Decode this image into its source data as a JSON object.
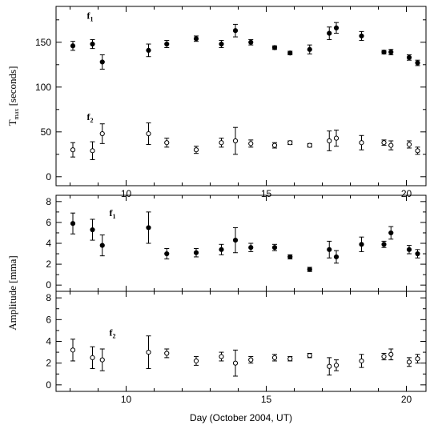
{
  "chart_data": [
    {
      "type": "scatter",
      "ylabel_main": "T",
      "ylabel_sub": "max",
      "ylabel_rest": "[seconds]",
      "xlim": [
        7.5,
        20.7
      ],
      "ylim": [
        -10,
        190
      ],
      "yticks": [
        0,
        50,
        100,
        150
      ],
      "xticks": [
        10,
        15,
        20
      ],
      "annotations": [
        {
          "main": "f",
          "sub": "1",
          "x": 8.6,
          "y": 176
        },
        {
          "main": "f",
          "sub": "2",
          "x": 8.6,
          "y": 63
        }
      ],
      "series": [
        {
          "marker": "filled",
          "points": [
            {
              "x": 8.1,
              "y": 146,
              "err": 5
            },
            {
              "x": 8.8,
              "y": 148,
              "err": 5
            },
            {
              "x": 9.15,
              "y": 128,
              "err": 8
            },
            {
              "x": 10.8,
              "y": 141,
              "err": 7
            },
            {
              "x": 11.45,
              "y": 148,
              "err": 4
            },
            {
              "x": 12.5,
              "y": 154,
              "err": 3
            },
            {
              "x": 13.4,
              "y": 148,
              "err": 4
            },
            {
              "x": 13.9,
              "y": 163,
              "err": 7
            },
            {
              "x": 14.45,
              "y": 150,
              "err": 3
            },
            {
              "x": 15.3,
              "y": 144,
              "err": 2
            },
            {
              "x": 15.85,
              "y": 138,
              "err": 2
            },
            {
              "x": 16.55,
              "y": 142,
              "err": 5
            },
            {
              "x": 17.25,
              "y": 160,
              "err": 7
            },
            {
              "x": 17.5,
              "y": 166,
              "err": 6
            },
            {
              "x": 18.4,
              "y": 157,
              "err": 5
            },
            {
              "x": 19.2,
              "y": 139,
              "err": 2
            },
            {
              "x": 19.45,
              "y": 139,
              "err": 3
            },
            {
              "x": 20.1,
              "y": 133,
              "err": 3
            },
            {
              "x": 20.4,
              "y": 127,
              "err": 3
            }
          ]
        },
        {
          "marker": "open",
          "points": [
            {
              "x": 8.1,
              "y": 30,
              "err": 8
            },
            {
              "x": 8.8,
              "y": 29,
              "err": 10
            },
            {
              "x": 9.15,
              "y": 48,
              "err": 11
            },
            {
              "x": 10.8,
              "y": 48,
              "err": 12
            },
            {
              "x": 11.45,
              "y": 38,
              "err": 5
            },
            {
              "x": 12.5,
              "y": 30,
              "err": 4
            },
            {
              "x": 13.4,
              "y": 38,
              "err": 5
            },
            {
              "x": 13.9,
              "y": 40,
              "err": 15
            },
            {
              "x": 14.45,
              "y": 37,
              "err": 4
            },
            {
              "x": 15.3,
              "y": 35,
              "err": 3
            },
            {
              "x": 15.85,
              "y": 38,
              "err": 2
            },
            {
              "x": 16.55,
              "y": 35,
              "err": 2
            },
            {
              "x": 17.25,
              "y": 40,
              "err": 11
            },
            {
              "x": 17.5,
              "y": 43,
              "err": 9
            },
            {
              "x": 18.4,
              "y": 38,
              "err": 8
            },
            {
              "x": 19.2,
              "y": 38,
              "err": 3
            },
            {
              "x": 19.45,
              "y": 35,
              "err": 5
            },
            {
              "x": 20.1,
              "y": 36,
              "err": 4
            },
            {
              "x": 20.4,
              "y": 29,
              "err": 4
            }
          ]
        }
      ]
    },
    {
      "type": "scatter",
      "ylabel": "Amplitude [mma]",
      "xlabel": "Day (October 2004, UT)",
      "xlim": [
        7.5,
        20.7
      ],
      "ylim": [
        -0.6,
        8.6
      ],
      "yticks": [
        0,
        2,
        4,
        6,
        8
      ],
      "xticks": [
        10,
        15,
        20
      ],
      "subpanels": [
        {
          "annotation": {
            "main": "f",
            "sub": "1",
            "x": 9.4,
            "y": 6.6
          },
          "marker": "filled",
          "points": [
            {
              "x": 8.1,
              "y": 5.9,
              "err": 1.0
            },
            {
              "x": 8.8,
              "y": 5.3,
              "err": 1.0
            },
            {
              "x": 9.15,
              "y": 3.8,
              "err": 1.0
            },
            {
              "x": 10.8,
              "y": 5.5,
              "err": 1.5
            },
            {
              "x": 11.45,
              "y": 3.0,
              "err": 0.5
            },
            {
              "x": 12.5,
              "y": 3.1,
              "err": 0.4
            },
            {
              "x": 13.4,
              "y": 3.4,
              "err": 0.5
            },
            {
              "x": 13.9,
              "y": 4.3,
              "err": 1.2
            },
            {
              "x": 14.45,
              "y": 3.6,
              "err": 0.4
            },
            {
              "x": 15.3,
              "y": 3.6,
              "err": 0.3
            },
            {
              "x": 15.85,
              "y": 2.7,
              "err": 0.2
            },
            {
              "x": 16.55,
              "y": 1.5,
              "err": 0.2
            },
            {
              "x": 17.25,
              "y": 3.4,
              "err": 0.8
            },
            {
              "x": 17.5,
              "y": 2.7,
              "err": 0.6
            },
            {
              "x": 18.4,
              "y": 3.9,
              "err": 0.7
            },
            {
              "x": 19.2,
              "y": 3.9,
              "err": 0.3
            },
            {
              "x": 19.45,
              "y": 5.0,
              "err": 0.6
            },
            {
              "x": 20.1,
              "y": 3.4,
              "err": 0.4
            },
            {
              "x": 20.4,
              "y": 3.0,
              "err": 0.4
            }
          ]
        },
        {
          "annotation": {
            "main": "f",
            "sub": "2",
            "x": 9.4,
            "y": 4.5
          },
          "marker": "open",
          "points": [
            {
              "x": 8.1,
              "y": 3.2,
              "err": 1.0
            },
            {
              "x": 8.8,
              "y": 2.5,
              "err": 1.0
            },
            {
              "x": 9.15,
              "y": 2.3,
              "err": 1.0
            },
            {
              "x": 10.8,
              "y": 3.0,
              "err": 1.5
            },
            {
              "x": 11.45,
              "y": 2.9,
              "err": 0.4
            },
            {
              "x": 12.5,
              "y": 2.2,
              "err": 0.4
            },
            {
              "x": 13.4,
              "y": 2.6,
              "err": 0.4
            },
            {
              "x": 13.9,
              "y": 2.0,
              "err": 1.2
            },
            {
              "x": 14.45,
              "y": 2.3,
              "err": 0.3
            },
            {
              "x": 15.3,
              "y": 2.5,
              "err": 0.3
            },
            {
              "x": 15.85,
              "y": 2.4,
              "err": 0.2
            },
            {
              "x": 16.55,
              "y": 2.7,
              "err": 0.2
            },
            {
              "x": 17.25,
              "y": 1.7,
              "err": 0.8
            },
            {
              "x": 17.5,
              "y": 1.8,
              "err": 0.5
            },
            {
              "x": 18.4,
              "y": 2.2,
              "err": 0.6
            },
            {
              "x": 19.2,
              "y": 2.6,
              "err": 0.3
            },
            {
              "x": 19.45,
              "y": 2.8,
              "err": 0.5
            },
            {
              "x": 20.1,
              "y": 2.1,
              "err": 0.4
            },
            {
              "x": 20.4,
              "y": 2.4,
              "err": 0.4
            }
          ]
        }
      ]
    }
  ]
}
